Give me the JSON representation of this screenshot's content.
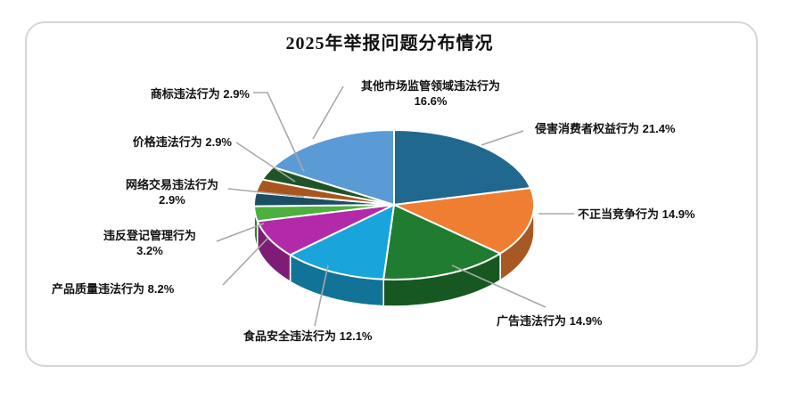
{
  "title": "2025年举报问题分布情况",
  "chart_data": {
    "type": "pie",
    "title": "2025年举报问题分布情况",
    "style": "3d-pie",
    "unit": "%",
    "start_angle": "12-o-clock",
    "direction": "clockwise",
    "legend_position": "none",
    "labels": "outside-with-leader-lines",
    "slices": [
      {
        "label": "侵害消费者权益行为",
        "value": 21.4,
        "color": "#20688E"
      },
      {
        "label": "不正当竞争行为",
        "value": 14.9,
        "color": "#F07E32"
      },
      {
        "label": "广告违法行为",
        "value": 14.9,
        "color": "#1F7C30"
      },
      {
        "label": "食品安全违法行为",
        "value": 12.1,
        "color": "#19A5DB"
      },
      {
        "label": "产品质量违法行为",
        "value": 8.2,
        "color": "#B22AA8"
      },
      {
        "label": "违反登记管理行为",
        "value": 3.2,
        "color": "#4CAF3E"
      },
      {
        "label": "网络交易违法行为",
        "value": 2.9,
        "color": "#1C4D63"
      },
      {
        "label": "价格违法行为",
        "value": 2.9,
        "color": "#A8561D"
      },
      {
        "label": "商标违法行为",
        "value": 2.9,
        "color": "#1E5426"
      },
      {
        "label": "其他市场监管领域违法行为",
        "value": 16.6,
        "color": "#5B9BD5"
      }
    ],
    "leader_line_color": "#a8a8a8",
    "separator_color": "#ffffff"
  }
}
